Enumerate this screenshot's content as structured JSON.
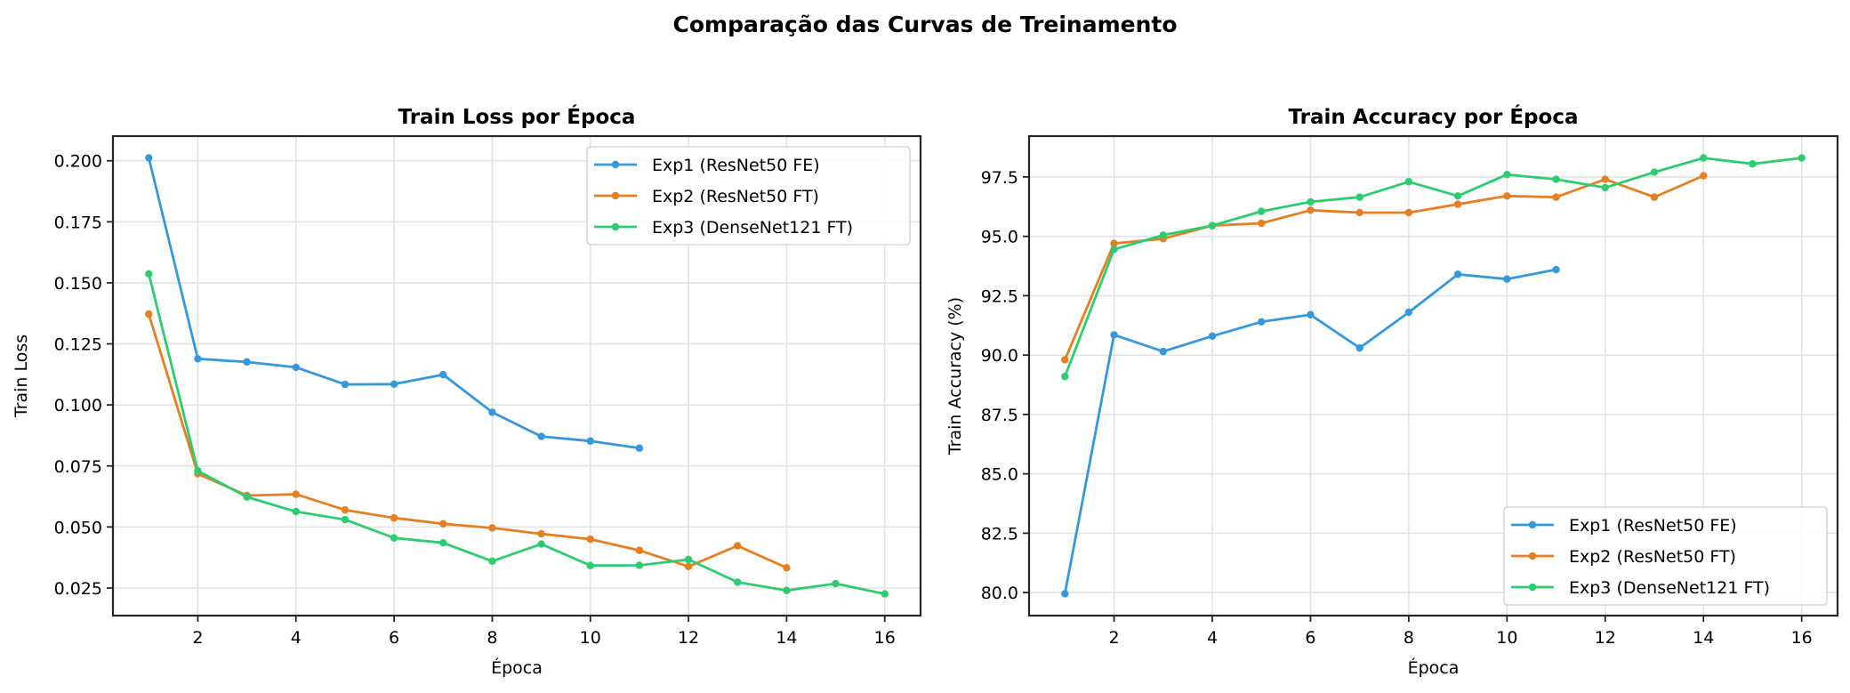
{
  "suptitle": "Comparação das Curvas de Treinamento",
  "chart_data": [
    {
      "type": "line",
      "title": "Train Loss por Época",
      "xlabel": "Época",
      "ylabel": "Train Loss",
      "xlim": [
        0.27,
        16.73
      ],
      "ylim": [
        0.0137,
        0.2101
      ],
      "xticks": [
        2,
        4,
        6,
        8,
        10,
        12,
        14,
        16
      ],
      "yticks": [
        0.025,
        0.05,
        0.075,
        0.1,
        0.125,
        0.15,
        0.175,
        0.2
      ],
      "ytick_labels": [
        "0.025",
        "0.050",
        "0.075",
        "0.100",
        "0.125",
        "0.150",
        "0.175",
        "0.200"
      ],
      "grid": true,
      "legend_position": "top-right",
      "series": [
        {
          "name": "Exp1 (ResNet50 FE)",
          "color": "#3498db",
          "x": [
            1,
            2,
            3,
            4,
            5,
            6,
            7,
            8,
            9,
            10,
            11
          ],
          "values": [
            0.2012,
            0.1189,
            0.1176,
            0.1154,
            0.1084,
            0.1085,
            0.1124,
            0.097,
            0.0871,
            0.0852,
            0.0823
          ]
        },
        {
          "name": "Exp2 (ResNet50 FT)",
          "color": "#e67e22",
          "x": [
            1,
            2,
            3,
            4,
            5,
            6,
            7,
            8,
            9,
            10,
            11,
            12,
            13,
            14
          ],
          "values": [
            0.1372,
            0.0718,
            0.0629,
            0.0634,
            0.057,
            0.0537,
            0.0513,
            0.0496,
            0.0472,
            0.045,
            0.0404,
            0.0338,
            0.0423,
            0.0333
          ]
        },
        {
          "name": "Exp3 (DenseNet121 FT)",
          "color": "#2ecc71",
          "x": [
            1,
            2,
            3,
            4,
            5,
            6,
            7,
            8,
            9,
            10,
            11,
            12,
            13,
            14,
            15,
            16
          ],
          "values": [
            0.1537,
            0.073,
            0.0623,
            0.0563,
            0.053,
            0.0455,
            0.0435,
            0.036,
            0.043,
            0.0342,
            0.0343,
            0.0367,
            0.0274,
            0.024,
            0.0268,
            0.0226
          ]
        }
      ]
    },
    {
      "type": "line",
      "title": "Train Accuracy por Época",
      "xlabel": "Época",
      "ylabel": "Train Accuracy (%)",
      "xlim": [
        0.27,
        16.73
      ],
      "ylim": [
        79.03,
        99.22
      ],
      "xticks": [
        2,
        4,
        6,
        8,
        10,
        12,
        14,
        16
      ],
      "yticks": [
        80.0,
        82.5,
        85.0,
        87.5,
        90.0,
        92.5,
        95.0,
        97.5
      ],
      "ytick_labels": [
        "80.0",
        "82.5",
        "85.0",
        "87.5",
        "90.0",
        "92.5",
        "95.0",
        "97.5"
      ],
      "grid": true,
      "legend_position": "bottom-right",
      "series": [
        {
          "name": "Exp1 (ResNet50 FE)",
          "color": "#3498db",
          "x": [
            1,
            2,
            3,
            4,
            5,
            6,
            7,
            8,
            9,
            10,
            11
          ],
          "values": [
            79.95,
            90.85,
            90.15,
            90.8,
            91.4,
            91.7,
            90.3,
            91.8,
            93.4,
            93.2,
            93.6
          ]
        },
        {
          "name": "Exp2 (ResNet50 FT)",
          "color": "#e67e22",
          "x": [
            1,
            2,
            3,
            4,
            5,
            6,
            7,
            8,
            9,
            10,
            11,
            12,
            13,
            14
          ],
          "values": [
            89.8,
            94.7,
            94.9,
            95.45,
            95.55,
            96.1,
            96.0,
            96.0,
            96.35,
            96.7,
            96.65,
            97.4,
            96.65,
            97.55
          ]
        },
        {
          "name": "Exp3 (DenseNet121 FT)",
          "color": "#2ecc71",
          "x": [
            1,
            2,
            3,
            4,
            5,
            6,
            7,
            8,
            9,
            10,
            11,
            12,
            13,
            14,
            15,
            16
          ],
          "values": [
            89.1,
            94.45,
            95.05,
            95.45,
            96.05,
            96.45,
            96.65,
            97.3,
            96.7,
            97.6,
            97.4,
            97.05,
            97.7,
            98.3,
            98.05,
            98.3
          ]
        }
      ]
    }
  ]
}
